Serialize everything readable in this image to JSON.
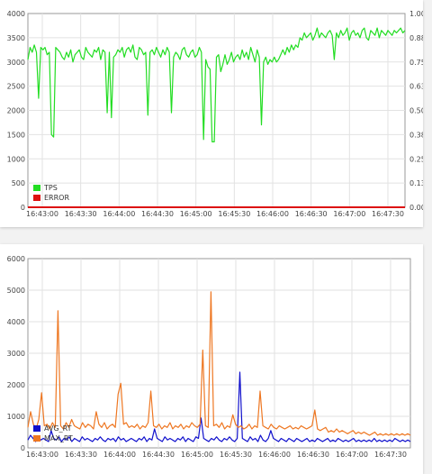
{
  "chart_data": [
    {
      "type": "line",
      "x_ticks": [
        "16:43:00",
        "16:43:30",
        "16:44:00",
        "16:44:30",
        "16:45:00",
        "16:45:30",
        "16:46:00",
        "16:46:30",
        "16:47:00",
        "16:47:30"
      ],
      "y_ticks": [
        "0",
        "500",
        "1000",
        "1500",
        "2000",
        "2500",
        "3000",
        "3500",
        "4000"
      ],
      "y2_ticks": [
        "0.00",
        "0.13",
        "0.25",
        "0.38",
        "0.50",
        "0.63",
        "0.75",
        "0.88",
        "1.00"
      ],
      "ylim": [
        0,
        4000
      ],
      "y2lim": [
        0,
        1
      ],
      "legend_position": "bottom-left",
      "grid": true,
      "series": [
        {
          "name": "TPS",
          "color": "#22dd22",
          "values": [
            3050,
            3300,
            3200,
            3350,
            3200,
            2250,
            3300,
            3250,
            3300,
            3150,
            3200,
            1500,
            1450,
            3300,
            3250,
            3200,
            3100,
            3050,
            3200,
            3100,
            3250,
            3000,
            3150,
            3200,
            3250,
            3100,
            3050,
            3300,
            3200,
            3150,
            3100,
            3250,
            3200,
            3300,
            3050,
            3250,
            3200,
            1950,
            3200,
            1850,
            3100,
            3150,
            3250,
            3200,
            3300,
            3100,
            3250,
            3300,
            3200,
            3350,
            3100,
            3050,
            3300,
            3250,
            3150,
            3200,
            1900,
            3200,
            3250,
            3150,
            3300,
            3200,
            3100,
            3250,
            3150,
            3300,
            3200,
            1950,
            3100,
            3200,
            3150,
            3050,
            3250,
            3300,
            3150,
            3100,
            3200,
            3250,
            3100,
            3150,
            3300,
            3200,
            1400,
            3050,
            2900,
            2850,
            1350,
            1350,
            3100,
            3150,
            2800,
            2950,
            3150,
            2950,
            3050,
            3200,
            3000,
            3100,
            3150,
            3050,
            3250,
            3100,
            3200,
            3050,
            3300,
            3150,
            3000,
            3250,
            3100,
            1700,
            3000,
            3100,
            2950,
            3050,
            3000,
            3100,
            3000,
            3050,
            3150,
            3250,
            3150,
            3300,
            3200,
            3350,
            3250,
            3350,
            3300,
            3500,
            3450,
            3600,
            3500,
            3550,
            3600,
            3450,
            3550,
            3700,
            3500,
            3600,
            3550,
            3500,
            3600,
            3650,
            3550,
            3050,
            3600,
            3500,
            3650,
            3550,
            3600,
            3700,
            3450,
            3600,
            3650,
            3550,
            3600,
            3500,
            3650,
            3700,
            3500,
            3450,
            3650,
            3600,
            3550,
            3700,
            3500,
            3650,
            3600,
            3550,
            3650,
            3600,
            3550,
            3650,
            3600,
            3650,
            3700,
            3600,
            3650
          ]
        },
        {
          "name": "ERROR",
          "color": "#dd1111",
          "values": [
            0,
            0,
            0,
            0,
            0,
            0,
            0,
            0,
            0,
            0,
            0,
            0
          ]
        }
      ]
    },
    {
      "type": "line",
      "x_ticks": [
        "16:43:00",
        "16:43:30",
        "16:44:00",
        "16:44:30",
        "16:45:00",
        "16:45:30",
        "16:46:00",
        "16:46:30",
        "16:47:00",
        "16:47:30"
      ],
      "y_ticks": [
        "0",
        "1000",
        "2000",
        "3000",
        "4000",
        "5000",
        "6000"
      ],
      "ylim": [
        0,
        6000
      ],
      "legend_position": "bottom-left",
      "grid": true,
      "series": [
        {
          "name": "AVG_RT",
          "color": "#1010cc",
          "values": [
            250,
            400,
            300,
            200,
            350,
            250,
            300,
            250,
            200,
            550,
            300,
            250,
            350,
            200,
            300,
            250,
            350,
            200,
            300,
            250,
            200,
            350,
            250,
            300,
            250,
            200,
            300,
            250,
            350,
            250,
            200,
            300,
            250,
            300,
            200,
            350,
            250,
            300,
            200,
            250,
            300,
            250,
            200,
            300,
            250,
            350,
            200,
            300,
            250,
            600,
            300,
            250,
            200,
            350,
            250,
            300,
            250,
            200,
            300,
            250,
            350,
            200,
            300,
            250,
            200,
            350,
            300,
            950,
            300,
            250,
            200,
            300,
            250,
            350,
            250,
            200,
            300,
            250,
            350,
            250,
            200,
            300,
            2400,
            300,
            250,
            200,
            350,
            250,
            300,
            200,
            400,
            250,
            200,
            300,
            550,
            300,
            250,
            200,
            300,
            250,
            200,
            300,
            250,
            200,
            300,
            250,
            200,
            250,
            300,
            200,
            250,
            200,
            300,
            250,
            200,
            250,
            300,
            200,
            250,
            200,
            300,
            250,
            200,
            250,
            200,
            250,
            300,
            200,
            250,
            200,
            250,
            200,
            250,
            200,
            300,
            200,
            250,
            200,
            250,
            200,
            250,
            200,
            300,
            250,
            200,
            250,
            200,
            250,
            200
          ]
        },
        {
          "name": "MAX_RT",
          "color": "#ee7722",
          "values": [
            650,
            1150,
            750,
            600,
            900,
            1750,
            700,
            750,
            600,
            800,
            650,
            4350,
            700,
            600,
            800,
            650,
            900,
            700,
            650,
            600,
            800,
            650,
            750,
            700,
            600,
            1150,
            750,
            650,
            800,
            600,
            700,
            750,
            650,
            1700,
            2050,
            750,
            800,
            650,
            700,
            650,
            750,
            600,
            700,
            650,
            800,
            1800,
            700,
            650,
            750,
            600,
            700,
            650,
            800,
            600,
            700,
            650,
            750,
            600,
            700,
            650,
            800,
            700,
            650,
            750,
            3100,
            700,
            650,
            4950,
            700,
            750,
            650,
            800,
            600,
            700,
            650,
            1050,
            750,
            650,
            700,
            600,
            650,
            750,
            600,
            700,
            650,
            1800,
            700,
            650,
            600,
            750,
            650,
            600,
            700,
            650,
            600,
            650,
            700,
            600,
            650,
            600,
            700,
            650,
            600,
            650,
            700,
            1200,
            600,
            550,
            600,
            650,
            500,
            550,
            500,
            600,
            500,
            550,
            500,
            450,
            500,
            550,
            450,
            500,
            450,
            500,
            450,
            400,
            450,
            500,
            400,
            450,
            400,
            450,
            400,
            450,
            400,
            450,
            400,
            450,
            400,
            450,
            400
          ]
        }
      ]
    }
  ]
}
